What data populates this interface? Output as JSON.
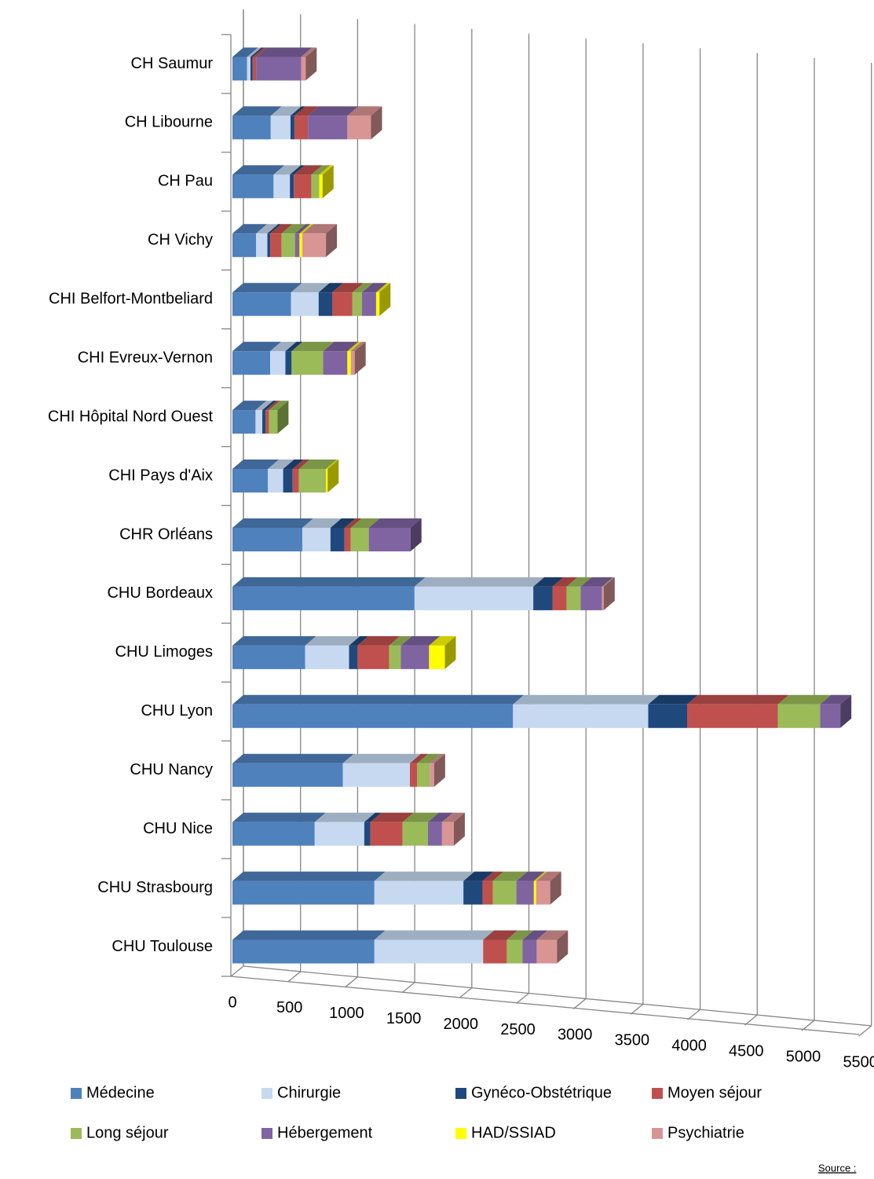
{
  "chart_data": {
    "type": "bar3d_stacked_horizontal",
    "categories": [
      "CH Saumur",
      "CH Libourne",
      "CH Pau",
      "CH Vichy",
      "CHI Belfort-Montbeliard",
      "CHI Evreux-Vernon",
      "CHI Hôpital Nord Ouest",
      "CHI Pays d'Aix",
      "CHR Orléans",
      "CHU Bordeaux",
      "CHU Limoges",
      "CHU Lyon",
      "CHU Nancy",
      "CHU Nice",
      "CHU Strasbourg",
      "CHU Toulouse"
    ],
    "series": [
      {
        "name": "Médecine",
        "color": "#4f81bd",
        "values": [
          130,
          340,
          365,
          210,
          520,
          335,
          205,
          315,
          620,
          1615,
          645,
          2490,
          980,
          730,
          1260,
          1260
        ]
      },
      {
        "name": "Chirurgie",
        "color": "#c6d9f1",
        "values": [
          30,
          175,
          145,
          100,
          245,
          135,
          60,
          135,
          250,
          1055,
          390,
          1200,
          595,
          440,
          790,
          965
        ]
      },
      {
        "name": "Gynéco-Obstétrique",
        "color": "#1f497d",
        "values": [
          20,
          35,
          35,
          25,
          120,
          55,
          30,
          85,
          125,
          170,
          75,
          345,
          0,
          55,
          170,
          0
        ]
      },
      {
        "name": "Moyen séjour",
        "color": "#c0504d",
        "values": [
          30,
          120,
          155,
          100,
          180,
          0,
          30,
          55,
          55,
          125,
          280,
          805,
          65,
          285,
          90,
          210
        ]
      },
      {
        "name": "Long séjour",
        "color": "#9bbb59",
        "values": [
          0,
          0,
          70,
          120,
          85,
          280,
          75,
          240,
          160,
          125,
          105,
          375,
          110,
          225,
          210,
          140
        ]
      },
      {
        "name": "Hébergement",
        "color": "#8064a2",
        "values": [
          400,
          350,
          0,
          40,
          125,
          215,
          0,
          0,
          370,
          190,
          250,
          180,
          0,
          125,
          155,
          125
        ]
      },
      {
        "name": "HAD/SSIAD",
        "color": "#ffff00",
        "values": [
          0,
          0,
          30,
          25,
          30,
          30,
          0,
          15,
          0,
          0,
          140,
          0,
          0,
          0,
          20,
          0
        ]
      },
      {
        "name": "Psychiatrie",
        "color": "#d99594",
        "values": [
          40,
          210,
          0,
          210,
          0,
          35,
          0,
          0,
          0,
          15,
          0,
          0,
          40,
          105,
          125,
          180
        ]
      }
    ],
    "xlim": [
      0,
      5500
    ],
    "xticks": [
      0,
      500,
      1000,
      1500,
      2000,
      2500,
      3000,
      3500,
      4000,
      4500,
      5000,
      5500
    ],
    "grid": true,
    "legend": "bottom",
    "source": "Source :"
  }
}
